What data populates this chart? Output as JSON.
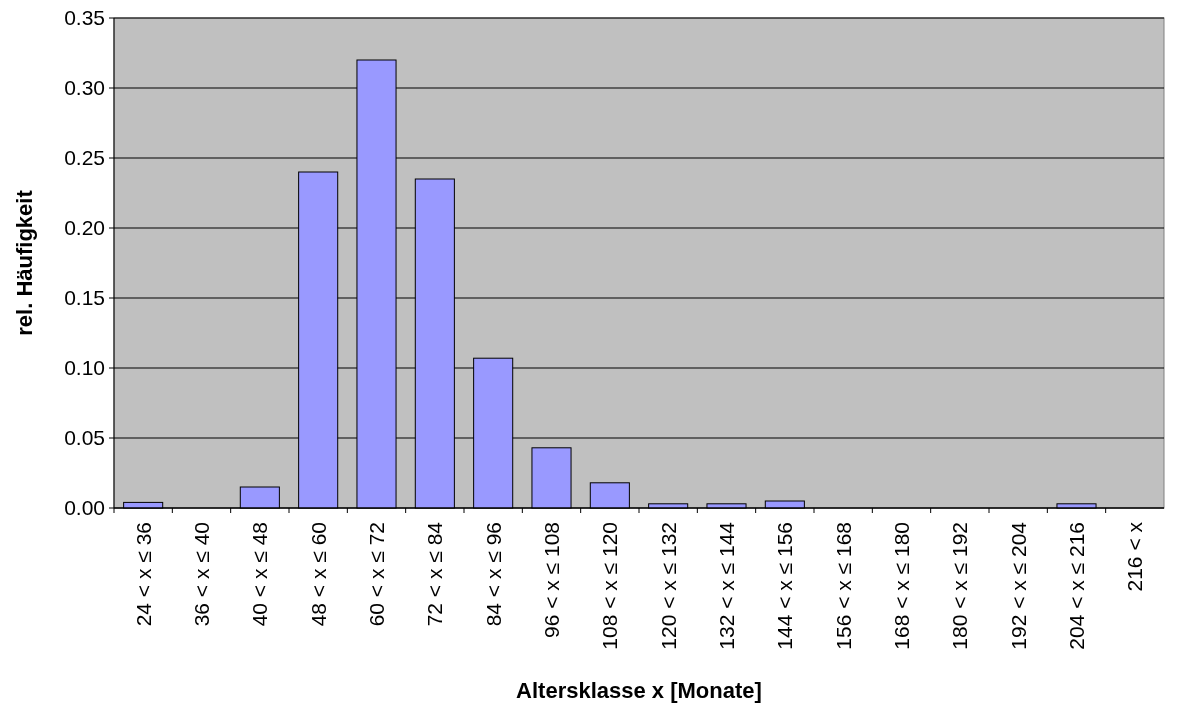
{
  "chart_data": {
    "type": "bar",
    "xlabel": "Altersklasse x [Monate]",
    "ylabel": "rel. Häufigkeit",
    "categories": [
      "24 < x ≤ 36",
      "36 < x ≤ 40",
      "40 < x ≤ 48",
      "48 < x ≤ 60",
      "60 < x ≤ 72",
      "72 < x ≤ 84",
      "84 < x ≤ 96",
      "96 < x ≤ 108",
      "108 < x ≤ 120",
      "120 < x ≤ 132",
      "132 < x ≤ 144",
      "144 < x ≤ 156",
      "156 < x ≤ 168",
      "168 < x ≤ 180",
      "180 < x ≤ 192",
      "192 < x ≤ 204",
      "204 < x ≤ 216",
      "216 < x"
    ],
    "values": [
      0.004,
      0,
      0.015,
      0.24,
      0.32,
      0.235,
      0.107,
      0.043,
      0.018,
      0.003,
      0.003,
      0.005,
      0,
      0,
      0,
      0,
      0.003,
      0
    ],
    "color": "#9999ff",
    "ylim": [
      0,
      0.35
    ],
    "yticks": [
      {
        "value": 0,
        "label": "0.00"
      },
      {
        "value": 0.05,
        "label": "0.05"
      },
      {
        "value": 0.1,
        "label": "0.10"
      },
      {
        "value": 0.15,
        "label": "0.15"
      },
      {
        "value": 0.2,
        "label": "0.20"
      },
      {
        "value": 0.25,
        "label": "0.25"
      },
      {
        "value": 0.3,
        "label": "0.30"
      },
      {
        "value": 0.35,
        "label": "0.35"
      }
    ],
    "grid": "y"
  }
}
